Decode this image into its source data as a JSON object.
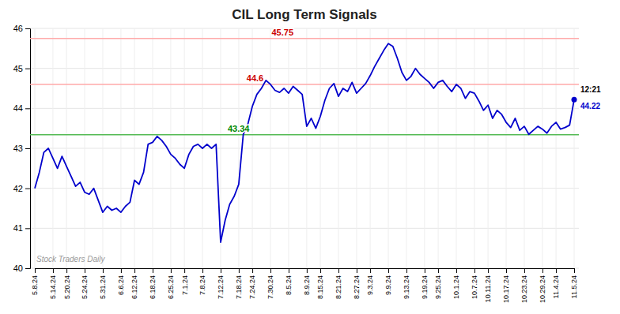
{
  "chart_data": {
    "type": "line",
    "title": "CIL Long Term Signals",
    "categories": [
      "5.8.24",
      null,
      null,
      null,
      "5.14.24",
      null,
      null,
      "5.20.24",
      null,
      null,
      null,
      "5.24.24",
      null,
      null,
      null,
      "5.31.24",
      null,
      null,
      null,
      "6.6.24",
      null,
      null,
      "6.12.24",
      null,
      null,
      null,
      "6.18.24",
      null,
      null,
      null,
      "6.25.24",
      null,
      null,
      "7.1.24",
      null,
      null,
      null,
      "7.8.24",
      null,
      null,
      null,
      "7.12.24",
      null,
      null,
      null,
      "7.18.24",
      null,
      null,
      "7.24.24",
      null,
      null,
      null,
      "7.30.24",
      null,
      null,
      null,
      "8.5.24",
      null,
      null,
      null,
      "8.9.24",
      null,
      null,
      "8.15.24",
      null,
      null,
      null,
      "8.21.24",
      null,
      null,
      null,
      "8.27.24",
      null,
      null,
      "9.3.24",
      null,
      null,
      null,
      "9.9.24",
      null,
      null,
      null,
      "9.13.24",
      null,
      null,
      null,
      "9.19.24",
      null,
      null,
      "9.25.24",
      null,
      null,
      null,
      "10.1.24",
      null,
      null,
      null,
      "10.7.24",
      null,
      null,
      "10.11.24",
      null,
      null,
      null,
      "10.17.24",
      null,
      null,
      null,
      "10.23.24",
      null,
      null,
      null,
      "10.29.24",
      null,
      null,
      "11.4.24",
      null,
      null,
      null,
      "11.5.24"
    ],
    "values": [
      42.0,
      42.4,
      42.9,
      43.0,
      42.75,
      42.5,
      42.8,
      42.55,
      42.3,
      42.05,
      42.15,
      41.9,
      41.85,
      42.0,
      41.7,
      41.4,
      41.55,
      41.45,
      41.5,
      41.4,
      41.55,
      41.65,
      42.2,
      42.1,
      42.4,
      43.1,
      43.15,
      43.3,
      43.2,
      43.05,
      42.85,
      42.75,
      42.6,
      42.5,
      42.85,
      43.05,
      43.1,
      43.0,
      43.1,
      43.0,
      43.1,
      40.65,
      41.2,
      41.6,
      41.8,
      42.1,
      43.35,
      43.6,
      44.05,
      44.35,
      44.5,
      44.7,
      44.6,
      44.45,
      44.4,
      44.5,
      44.38,
      44.55,
      44.45,
      44.35,
      43.55,
      43.75,
      43.5,
      43.8,
      44.2,
      44.5,
      44.62,
      44.3,
      44.5,
      44.42,
      44.65,
      44.38,
      44.5,
      44.62,
      44.82,
      45.05,
      45.25,
      45.45,
      45.62,
      45.55,
      45.25,
      44.9,
      44.7,
      44.8,
      45.0,
      44.85,
      44.75,
      44.65,
      44.5,
      44.65,
      44.7,
      44.55,
      44.42,
      44.6,
      44.5,
      44.25,
      44.42,
      44.38,
      44.18,
      43.95,
      44.08,
      43.75,
      43.95,
      43.85,
      43.65,
      43.52,
      43.75,
      43.45,
      43.55,
      43.35,
      43.45,
      43.55,
      43.48,
      43.38,
      43.55,
      43.65,
      43.48,
      43.52,
      43.58,
      44.22
    ],
    "color": "#0000cc",
    "ylim": [
      40,
      46
    ],
    "yticks": [
      40,
      41,
      42,
      43,
      44,
      45,
      46
    ],
    "grid": true,
    "reference_lines": [
      {
        "value": 45.75,
        "label": "45.75",
        "color": "#ffaaaa",
        "label_color": "#cc0000"
      },
      {
        "value": 44.6,
        "label": "44.6",
        "color": "#ffaaaa",
        "label_color": "#cc0000"
      },
      {
        "value": 43.34,
        "label": "43.34",
        "color": "#55bb55",
        "label_color": "#008800"
      }
    ],
    "annotations": [
      {
        "text": "12:21"
      },
      {
        "text": "44.22",
        "color": "#0000cc"
      }
    ],
    "watermark": "Stock Traders Daily"
  }
}
